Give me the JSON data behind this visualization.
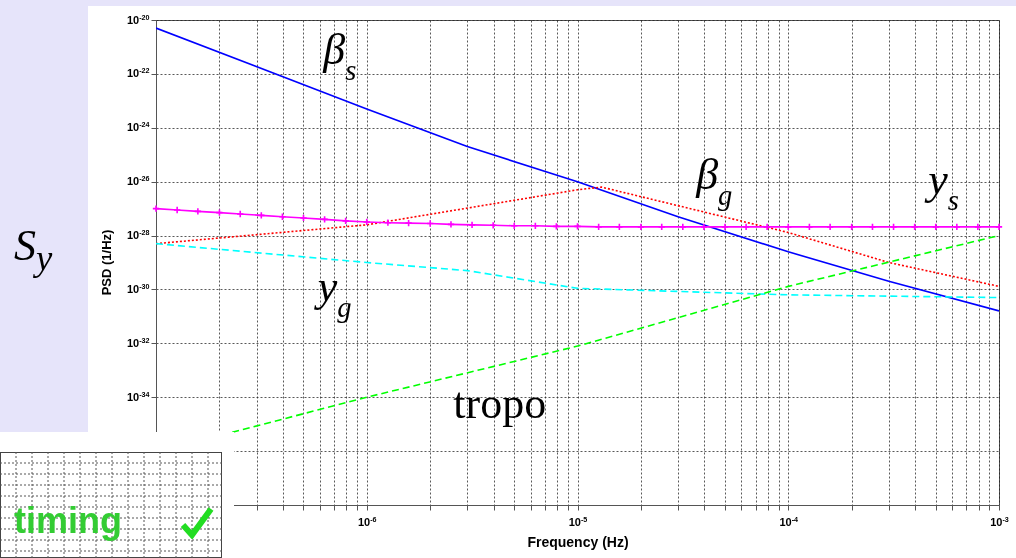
{
  "chart_data": {
    "type": "line",
    "xlabel": "Frequency (Hz)",
    "ylabel": "PSD (1/Hz)",
    "log": "xy",
    "grid": true,
    "xlim": [
      1e-07,
      0.001
    ],
    "ylim": [
      1e-38,
      1e-20
    ],
    "xticks": [
      {
        "value": 1e-07,
        "label": null
      },
      {
        "value": 2e-07,
        "label": null
      },
      {
        "value": 3e-07,
        "label": null
      },
      {
        "value": 4e-07,
        "label": null
      },
      {
        "value": 5e-07,
        "label": null
      },
      {
        "value": 6e-07,
        "label": null
      },
      {
        "value": 7e-07,
        "label": null
      },
      {
        "value": 8e-07,
        "label": null
      },
      {
        "value": 9e-07,
        "label": null
      },
      {
        "value": 1e-06,
        "label": "10$^{-6}$"
      },
      {
        "value": 2e-06,
        "label": null
      },
      {
        "value": 3e-06,
        "label": null
      },
      {
        "value": 4e-06,
        "label": null
      },
      {
        "value": 5e-06,
        "label": null
      },
      {
        "value": 6e-06,
        "label": null
      },
      {
        "value": 7e-06,
        "label": null
      },
      {
        "value": 8e-06,
        "label": null
      },
      {
        "value": 9e-06,
        "label": null
      },
      {
        "value": 1e-05,
        "label": "10$^{-5}$"
      },
      {
        "value": 2e-05,
        "label": null
      },
      {
        "value": 3e-05,
        "label": null
      },
      {
        "value": 4e-05,
        "label": null
      },
      {
        "value": 5e-05,
        "label": null
      },
      {
        "value": 6e-05,
        "label": null
      },
      {
        "value": 7e-05,
        "label": null
      },
      {
        "value": 8e-05,
        "label": null
      },
      {
        "value": 9e-05,
        "label": null
      },
      {
        "value": 0.0001,
        "label": "10$^{-4}$"
      },
      {
        "value": 0.0002,
        "label": null
      },
      {
        "value": 0.0003,
        "label": null
      },
      {
        "value": 0.0004,
        "label": null
      },
      {
        "value": 0.0005,
        "label": null
      },
      {
        "value": 0.0006,
        "label": null
      },
      {
        "value": 0.0007,
        "label": null
      },
      {
        "value": 0.0008,
        "label": null
      },
      {
        "value": 0.0009,
        "label": null
      },
      {
        "value": 0.001,
        "label": "10$^{-3}$"
      }
    ],
    "yticks": [
      {
        "value": 1e-38,
        "label": null
      },
      {
        "value": 1e-36,
        "label": null
      },
      {
        "value": 1e-34,
        "label": "10$^{-34}$"
      },
      {
        "value": 1e-32,
        "label": "10$^{-32}$"
      },
      {
        "value": 1e-30,
        "label": "10$^{-30}$"
      },
      {
        "value": 1e-28,
        "label": "10$^{-28}$"
      },
      {
        "value": 1e-26,
        "label": "10$^{-26}$"
      },
      {
        "value": 1e-24,
        "label": "10$^{-24}$"
      },
      {
        "value": 1e-22,
        "label": "10$^{-22}$"
      },
      {
        "value": 1e-20,
        "label": "10$^{-20}$"
      }
    ],
    "series": [
      {
        "name": "β$_{s}$",
        "color": "#0000ff",
        "line_style": "solid",
        "x": [
          1e-07,
          1e-06,
          3e-06,
          1e-05,
          3e-05,
          0.0001,
          0.0003,
          0.001
        ],
        "values": [
          5e-21,
          5e-24,
          2e-25,
          1e-26,
          5e-28,
          2.5e-29,
          2e-30,
          1.6e-31
        ]
      },
      {
        "name": "β$_{g}$",
        "color": "#ff0000",
        "line_style": "dotted",
        "x": [
          1e-07,
          1e-06,
          1e-05,
          1.3e-05,
          0.0001,
          0.0003,
          0.001
        ],
        "values": [
          5e-29,
          2.5e-28,
          5e-27,
          6.3e-27,
          1.3e-28,
          1e-29,
          1.3e-30
        ]
      },
      {
        "name": "y$_{s}$",
        "color": "#ff00ff",
        "line_style": "solid",
        "marker": "cross",
        "x": [
          1e-07,
          1.26e-07,
          1.58e-07,
          2e-07,
          2.51e-07,
          3.16e-07,
          3.98e-07,
          5.01e-07,
          6.31e-07,
          7.94e-07,
          1e-06,
          1.26e-06,
          1.58e-06,
          2e-06,
          2.51e-06,
          3.16e-06,
          3.98e-06,
          5.01e-06,
          6.31e-06,
          7.94e-06,
          1e-05,
          1.26e-05,
          1.58e-05,
          2e-05,
          2.51e-05,
          3.16e-05,
          3.98e-05,
          5.01e-05,
          6.31e-05,
          7.94e-05,
          0.0001,
          0.000126,
          0.000158,
          0.0002,
          0.000251,
          0.000316,
          0.000398,
          0.000501,
          0.000631,
          0.000794,
          0.001
        ],
        "values": [
          1e-27,
          8.9e-28,
          7.9e-28,
          7.1e-28,
          6.3e-28,
          5.6e-28,
          5e-28,
          4.5e-28,
          4e-28,
          3.5e-28,
          3.2e-28,
          3e-28,
          2.9e-28,
          2.8e-28,
          2.6e-28,
          2.5e-28,
          2.4e-28,
          2.3e-28,
          2.3e-28,
          2.2e-28,
          2.2e-28,
          2.1e-28,
          2.1e-28,
          2.1e-28,
          2.1e-28,
          2.1e-28,
          2.1e-28,
          2.1e-28,
          2.1e-28,
          2.1e-28,
          2.1e-28,
          2.1e-28,
          2.1e-28,
          2.1e-28,
          2.1e-28,
          2.1e-28,
          2.1e-28,
          2.1e-28,
          2.1e-28,
          2.1e-28,
          2.1e-28
        ]
      },
      {
        "name": "y$_{g}$",
        "color": "#00ffff",
        "line_style": "dashed",
        "x": [
          1e-07,
          1e-06,
          3e-06,
          1e-05,
          0.0001,
          0.001
        ],
        "values": [
          5e-29,
          1e-29,
          5e-30,
          1.1e-30,
          6.3e-31,
          5e-31
        ]
      },
      {
        "name": "tropo",
        "color": "#00ff00",
        "line_style": "dashed",
        "x": [
          2.3e-07,
          1e-06,
          1e-05,
          0.0001,
          0.001
        ],
        "values": [
          5e-36,
          1e-34,
          7.9e-33,
          1.3e-30,
          1e-28
        ]
      }
    ],
    "annotations": [
      "S$_{y}$",
      "timing"
    ]
  }
}
